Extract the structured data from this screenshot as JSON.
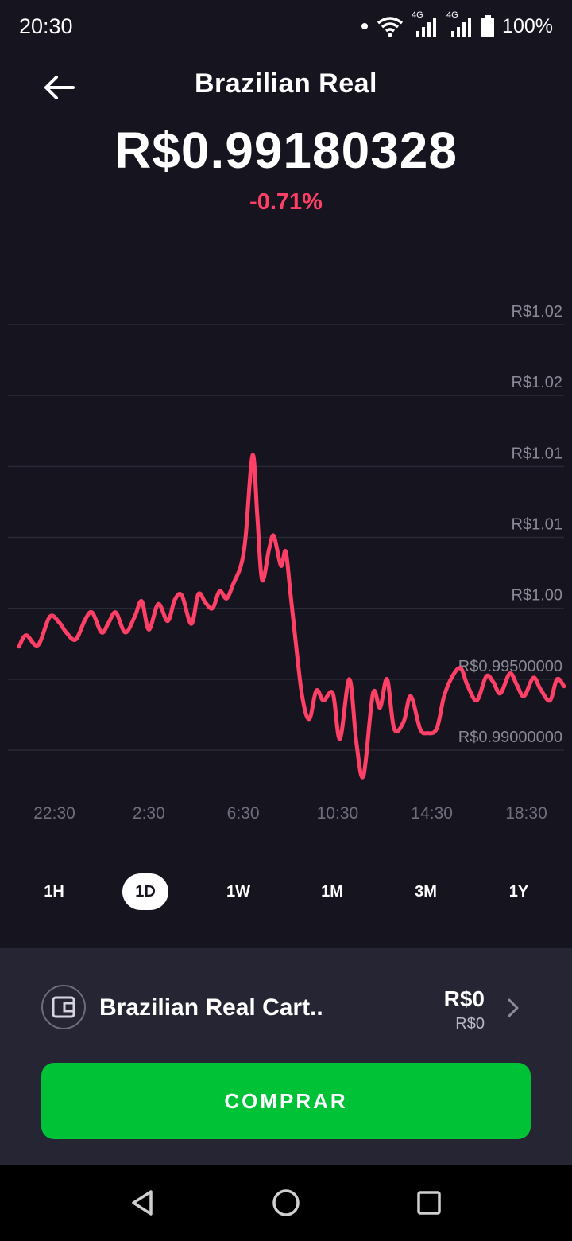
{
  "status_bar": {
    "time": "20:30",
    "network_1": "4G",
    "network_2": "4G",
    "battery": "100%"
  },
  "header": {
    "back_icon": "arrow-left-icon",
    "title": "Brazilian Real"
  },
  "price": "R$0.99180328",
  "change": "-0.71%",
  "colors": {
    "background": "#15141f",
    "line": "#ff4066",
    "accent_green": "#00c236",
    "panel": "#262534"
  },
  "chart_data": {
    "type": "line",
    "y_tick_labels": [
      "R$1.02",
      "R$1.02",
      "R$1.01",
      "R$1.01",
      "R$1.00",
      "R$0.99500000",
      "R$0.99000000"
    ],
    "y_ticks": [
      1.02,
      1.015,
      1.01,
      1.005,
      1.0,
      0.995,
      0.99
    ],
    "x_tick_labels": [
      "22:30",
      "2:30",
      "6:30",
      "10:30",
      "14:30",
      "18:30"
    ],
    "x_ticks": [
      0,
      4,
      8,
      12,
      16,
      20
    ],
    "xlim": [
      -1.5,
      21.6
    ],
    "ylim": [
      0.99,
      1.02
    ],
    "grid": true,
    "series": [
      {
        "x": [
          -1.5,
          -1.2,
          -0.7,
          -0.2,
          0.2,
          0.5,
          0.9,
          1.3,
          1.6,
          2.0,
          2.3,
          2.6,
          3.0,
          3.4,
          3.7,
          4.0,
          4.4,
          4.8,
          5.1,
          5.4,
          5.8,
          6.1,
          6.4,
          6.7,
          7.0,
          7.3,
          7.6,
          7.9,
          8.1,
          8.4,
          8.6,
          8.8,
          9.1,
          9.3,
          9.6,
          9.8,
          10.0,
          10.2,
          10.5,
          10.8,
          11.1,
          11.4,
          11.8,
          12.1,
          12.5,
          12.8,
          13.1,
          13.5,
          13.8,
          14.1,
          14.4,
          14.8,
          15.1,
          15.5,
          15.8,
          16.2,
          16.5,
          16.8,
          17.2,
          17.5,
          17.9,
          18.3,
          18.6,
          18.9,
          19.3,
          19.6,
          19.9,
          20.3,
          20.6,
          21.0,
          21.3,
          21.6
        ],
        "y": [
          0.9973,
          0.9981,
          0.9974,
          0.9994,
          0.999,
          0.9983,
          0.9978,
          0.9992,
          0.9997,
          0.9983,
          0.999,
          0.9997,
          0.9983,
          0.9994,
          1.0005,
          0.9985,
          1.0003,
          0.9991,
          1.0006,
          1.0009,
          0.9989,
          1.001,
          1.0004,
          1.0,
          1.0012,
          1.0007,
          1.0018,
          1.003,
          1.005,
          1.0108,
          1.0065,
          1.002,
          1.0042,
          1.0051,
          1.003,
          1.004,
          1.0011,
          0.998,
          0.9938,
          0.9922,
          0.9942,
          0.9935,
          0.994,
          0.9908,
          0.995,
          0.9905,
          0.9882,
          0.994,
          0.993,
          0.995,
          0.9915,
          0.992,
          0.9938,
          0.9915,
          0.9912,
          0.9915,
          0.9937,
          0.995,
          0.9958,
          0.9946,
          0.9935,
          0.9952,
          0.9948,
          0.994,
          0.9954,
          0.9946,
          0.9938,
          0.9951,
          0.9943,
          0.9935,
          0.995,
          0.9945
        ]
      }
    ]
  },
  "ranges": [
    {
      "label": "1H",
      "active": false
    },
    {
      "label": "1D",
      "active": true
    },
    {
      "label": "1W",
      "active": false
    },
    {
      "label": "1M",
      "active": false
    },
    {
      "label": "3M",
      "active": false
    },
    {
      "label": "1Y",
      "active": false
    }
  ],
  "wallet": {
    "icon": "wallet-icon",
    "name": "Brazilian Real Cart..",
    "amount": "R$0",
    "sub_amount": "R$0",
    "chevron": "chevron-right-icon"
  },
  "buy_button": {
    "label": "COMPRAR"
  },
  "nav_bar": {
    "back": "nav-back-icon",
    "home": "nav-home-icon",
    "recents": "nav-recents-icon"
  }
}
